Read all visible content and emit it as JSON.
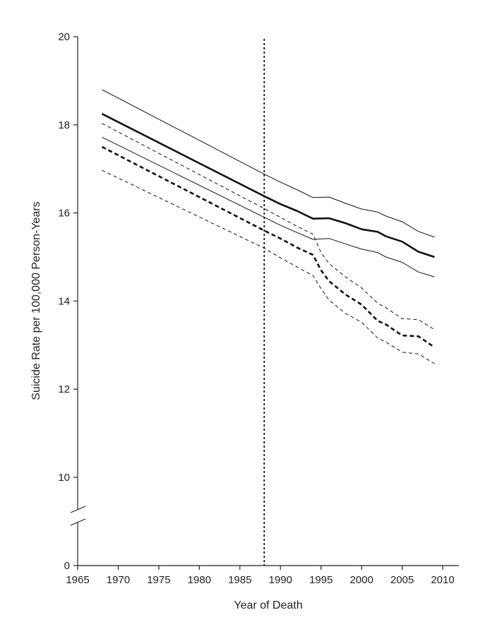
{
  "chart_data": {
    "type": "line",
    "title": "",
    "xlabel": "Year of Death",
    "ylabel": "Suicide Rate  per 100,000 Person-Years",
    "xlim": [
      1965,
      2012
    ],
    "xticks": [
      1965,
      1970,
      1975,
      1980,
      1985,
      1990,
      1995,
      2000,
      2005,
      2010
    ],
    "ylim": [
      0,
      20
    ],
    "yticks": [
      0,
      10,
      12,
      14,
      16,
      18,
      20
    ],
    "y_axis_break": [
      0,
      9.5
    ],
    "grid": false,
    "legend": "none",
    "reference_line": {
      "x": 1988,
      "style": "dotted"
    },
    "series": [
      {
        "role": "estimate",
        "style": "solid-thick",
        "points": [
          [
            1968,
            18.25
          ],
          [
            1988,
            16.38
          ],
          [
            1990,
            16.2
          ],
          [
            1992,
            16.05
          ],
          [
            1994,
            15.87
          ],
          [
            1996,
            15.88
          ],
          [
            1998,
            15.77
          ],
          [
            2000,
            15.63
          ],
          [
            2002,
            15.57
          ],
          [
            2003,
            15.47
          ],
          [
            2005,
            15.35
          ],
          [
            2007,
            15.12
          ],
          [
            2009,
            15.0
          ]
        ]
      },
      {
        "role": "upper-ci",
        "style": "solid-thin",
        "points": [
          [
            1968,
            18.8
          ],
          [
            1988,
            16.88
          ],
          [
            1990,
            16.7
          ],
          [
            1992,
            16.53
          ],
          [
            1994,
            16.35
          ],
          [
            1996,
            16.36
          ],
          [
            1998,
            16.22
          ],
          [
            2000,
            16.09
          ],
          [
            2002,
            16.02
          ],
          [
            2003,
            15.93
          ],
          [
            2005,
            15.8
          ],
          [
            2007,
            15.58
          ],
          [
            2009,
            15.45
          ]
        ]
      },
      {
        "role": "lower-ci",
        "style": "solid-thin",
        "points": [
          [
            1968,
            17.72
          ],
          [
            1988,
            15.9
          ],
          [
            1990,
            15.72
          ],
          [
            1992,
            15.56
          ],
          [
            1994,
            15.4
          ],
          [
            1996,
            15.42
          ],
          [
            1998,
            15.3
          ],
          [
            2000,
            15.18
          ],
          [
            2002,
            15.1
          ],
          [
            2003,
            15.0
          ],
          [
            2005,
            14.88
          ],
          [
            2007,
            14.66
          ],
          [
            2009,
            14.55
          ]
        ]
      },
      {
        "role": "estimate",
        "style": "dashed-thick",
        "points": [
          [
            1968,
            17.5
          ],
          [
            1988,
            15.6
          ],
          [
            1990,
            15.42
          ],
          [
            1992,
            15.22
          ],
          [
            1994,
            15.05
          ],
          [
            1995,
            14.7
          ],
          [
            1996,
            14.45
          ],
          [
            1998,
            14.15
          ],
          [
            2000,
            13.92
          ],
          [
            2002,
            13.55
          ],
          [
            2003,
            13.47
          ],
          [
            2005,
            13.22
          ],
          [
            2007,
            13.2
          ],
          [
            2009,
            12.95
          ]
        ]
      },
      {
        "role": "upper-ci",
        "style": "dashed-thin",
        "points": [
          [
            1968,
            18.03
          ],
          [
            1988,
            16.1
          ],
          [
            1990,
            15.9
          ],
          [
            1992,
            15.7
          ],
          [
            1994,
            15.52
          ],
          [
            1995,
            15.1
          ],
          [
            1996,
            14.85
          ],
          [
            1998,
            14.55
          ],
          [
            2000,
            14.3
          ],
          [
            2002,
            13.95
          ],
          [
            2003,
            13.85
          ],
          [
            2005,
            13.6
          ],
          [
            2007,
            13.58
          ],
          [
            2009,
            13.35
          ]
        ]
      },
      {
        "role": "lower-ci",
        "style": "dashed-thin",
        "points": [
          [
            1968,
            16.97
          ],
          [
            1988,
            15.2
          ],
          [
            1990,
            14.98
          ],
          [
            1992,
            14.78
          ],
          [
            1994,
            14.58
          ],
          [
            1995,
            14.28
          ],
          [
            1996,
            14.02
          ],
          [
            1998,
            13.72
          ],
          [
            2000,
            13.52
          ],
          [
            2002,
            13.16
          ],
          [
            2003,
            13.07
          ],
          [
            2005,
            12.84
          ],
          [
            2007,
            12.8
          ],
          [
            2009,
            12.58
          ]
        ]
      }
    ]
  }
}
